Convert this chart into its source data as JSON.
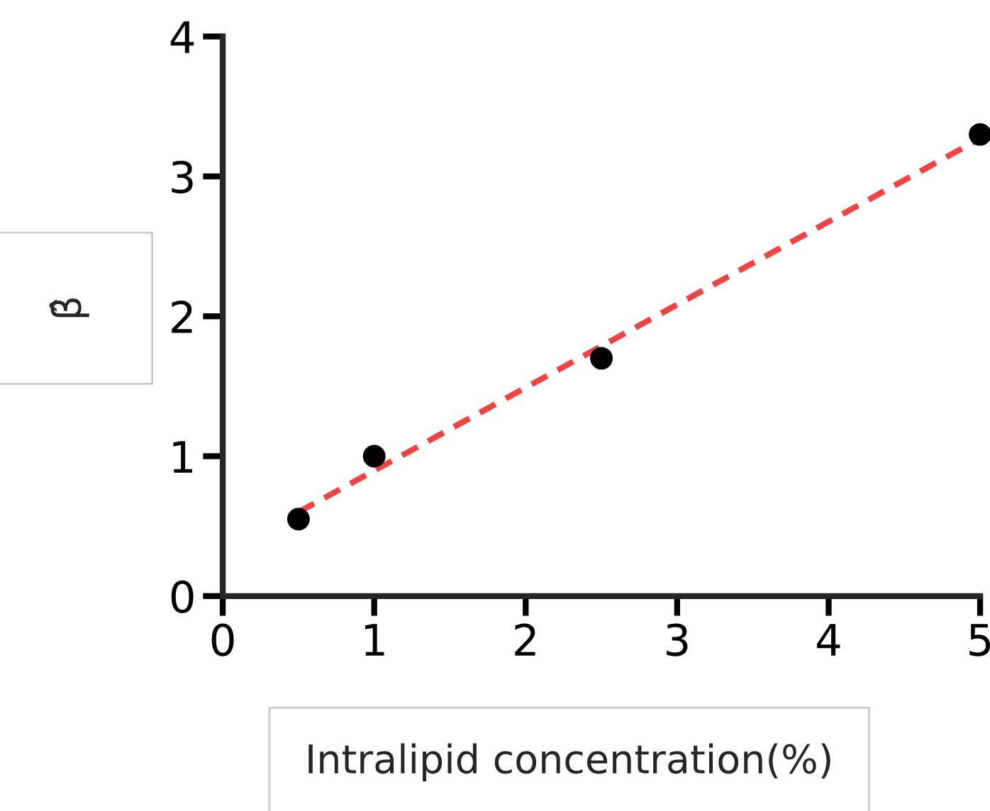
{
  "chart_data": {
    "type": "scatter",
    "xlabel": "Intralipid concentration(%)",
    "ylabel": "β̂",
    "x": [
      0.5,
      1,
      2.5,
      5
    ],
    "series": [
      {
        "color": "#000000",
        "values": [
          0.55,
          1.0,
          1.7,
          3.3
        ],
        "marker": "circle"
      },
      {
        "type": "line",
        "color": "#ef4444",
        "x": [
          0.5,
          5
        ],
        "values": [
          0.6,
          3.27
        ],
        "line_style": "dashed",
        "marker": "none"
      }
    ],
    "xlim": [
      0,
      5
    ],
    "ylim": [
      0,
      4
    ],
    "xticks": [
      0,
      1,
      2,
      3,
      4,
      5
    ],
    "yticks": [
      0,
      1,
      2,
      3,
      4
    ],
    "grid": false,
    "legend": false
  }
}
